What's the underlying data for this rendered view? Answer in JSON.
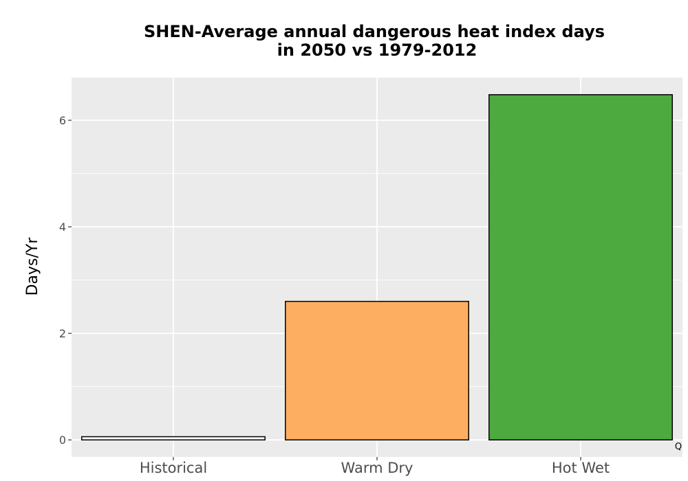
{
  "chart_data": {
    "type": "bar",
    "title_lines": [
      "SHEN-Average annual dangerous heat index days",
      "in 2050 vs 1979-2012"
    ],
    "categories": [
      "Historical",
      "Warm Dry",
      "Hot Wet"
    ],
    "values": [
      0.06,
      2.6,
      6.48
    ],
    "colors": [
      "#ffffff",
      "#fdae61",
      "#4daa3f"
    ],
    "xlabel": "",
    "ylabel": "Days/Yr",
    "ylim": [
      -0.32,
      6.8
    ],
    "yticks": [
      0,
      2,
      4,
      6
    ],
    "grid": true,
    "panel_background": "#ebebeb",
    "corner_mark": "Q"
  }
}
